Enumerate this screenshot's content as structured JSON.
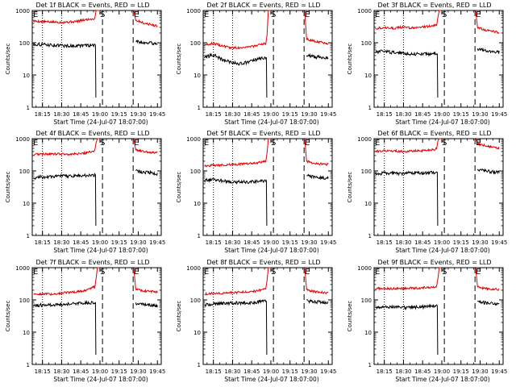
{
  "chart_data": [
    {
      "type": "line",
      "title": "Det 1f BLACK = Events, RED = LLD",
      "ylabel": "Counts/sec",
      "xlabel": "Start Time (24-Jul-07 18:07:00)",
      "yscale": "log",
      "ylim": [
        1,
        1000
      ],
      "yticks": [
        "1",
        "10",
        "100",
        "1000"
      ],
      "xticks": [
        "18:15",
        "18:30",
        "18:45",
        "19:00",
        "19:15",
        "19:30",
        "19:45"
      ],
      "markers": {
        "S": "19:02",
        "E": "19:26"
      },
      "series": [
        {
          "color": "#e00000",
          "pre": [
            470,
            450,
            440,
            430,
            440,
            460,
            520,
            560
          ],
          "post": [
            500,
            450,
            400,
            380,
            350,
            330
          ]
        },
        {
          "color": "#000000",
          "pre": [
            90,
            88,
            85,
            82,
            80,
            80,
            82,
            85
          ],
          "post": [
            110,
            105,
            100,
            100,
            95,
            95
          ]
        }
      ]
    },
    {
      "type": "line",
      "title": "Det 2f BLACK = Events, RED = LLD",
      "ylabel": "Counts/sec",
      "xlabel": "Start Time (24-Jul-07 18:07:00)",
      "yscale": "log",
      "ylim": [
        1,
        1000
      ],
      "yticks": [
        "1",
        "10",
        "100",
        "1000"
      ],
      "xticks": [
        "18:15",
        "18:30",
        "18:45",
        "19:00",
        "19:15",
        "19:30",
        "19:45"
      ],
      "markers": {
        "S": "19:02",
        "E": "19:26"
      },
      "series": [
        {
          "color": "#e00000",
          "pre": [
            85,
            95,
            80,
            70,
            70,
            75,
            80,
            95
          ],
          "post": [
            130,
            120,
            110,
            105,
            100,
            95
          ]
        },
        {
          "color": "#000000",
          "pre": [
            35,
            42,
            30,
            25,
            22,
            25,
            30,
            35
          ],
          "post": [
            40,
            38,
            36,
            36,
            35,
            35
          ]
        }
      ]
    },
    {
      "type": "line",
      "title": "Det 3f BLACK = Events, RED = LLD",
      "ylabel": "Counts/sec",
      "xlabel": "Start Time (24-Jul-07 18:07:00)",
      "yscale": "log",
      "ylim": [
        1,
        1000
      ],
      "yticks": [
        "1",
        "10",
        "100",
        "1000"
      ],
      "xticks": [
        "18:15",
        "18:30",
        "18:45",
        "19:00",
        "19:15",
        "19:30",
        "19:45"
      ],
      "markers": {
        "S": "19:02",
        "E": "19:26"
      },
      "series": [
        {
          "color": "#e00000",
          "pre": [
            280,
            300,
            280,
            300,
            290,
            300,
            320,
            350
          ],
          "post": [
            300,
            270,
            240,
            230,
            220,
            210
          ]
        },
        {
          "color": "#000000",
          "pre": [
            50,
            55,
            50,
            48,
            45,
            45,
            45,
            45
          ],
          "post": [
            65,
            60,
            55,
            55,
            52,
            50
          ]
        }
      ]
    },
    {
      "type": "line",
      "title": "Det 4f BLACK = Events, RED = LLD",
      "ylabel": "Counts/sec",
      "xlabel": "Start Time (24-Jul-07 18:07:00)",
      "yscale": "log",
      "ylim": [
        1,
        1000
      ],
      "yticks": [
        "1",
        "10",
        "100",
        "1000"
      ],
      "xticks": [
        "18:15",
        "18:30",
        "18:45",
        "19:00",
        "19:15",
        "19:30",
        "19:45"
      ],
      "markers": {
        "S": "19:02",
        "E": "19:26"
      },
      "series": [
        {
          "color": "#e00000",
          "pre": [
            320,
            340,
            330,
            340,
            330,
            340,
            360,
            420
          ],
          "post": [
            450,
            420,
            400,
            380,
            370,
            360
          ]
        },
        {
          "color": "#000000",
          "pre": [
            60,
            65,
            65,
            68,
            70,
            70,
            72,
            75
          ],
          "post": [
            100,
            95,
            90,
            88,
            85,
            82
          ]
        }
      ]
    },
    {
      "type": "line",
      "title": "Det 5f BLACK = Events, RED = LLD",
      "ylabel": "Counts/sec",
      "xlabel": "Start Time (24-Jul-07 18:07:00)",
      "yscale": "log",
      "ylim": [
        1,
        1000
      ],
      "yticks": [
        "1",
        "10",
        "100",
        "1000"
      ],
      "xticks": [
        "18:15",
        "18:30",
        "18:45",
        "19:00",
        "19:15",
        "19:30",
        "19:45"
      ],
      "markers": {
        "S": "19:02",
        "E": "19:26"
      },
      "series": [
        {
          "color": "#e00000",
          "pre": [
            140,
            150,
            150,
            160,
            160,
            170,
            180,
            200
          ],
          "post": [
            200,
            180,
            170,
            165,
            160,
            160
          ]
        },
        {
          "color": "#000000",
          "pre": [
            50,
            55,
            50,
            45,
            45,
            45,
            48,
            50
          ],
          "post": [
            70,
            68,
            65,
            62,
            60,
            58
          ]
        }
      ]
    },
    {
      "type": "line",
      "title": "Det 6f BLACK = Events, RED = LLD",
      "ylabel": "Counts/sec",
      "xlabel": "Start Time (24-Jul-07 18:07:00)",
      "yscale": "log",
      "ylim": [
        1,
        1000
      ],
      "yticks": [
        "1",
        "10",
        "100",
        "1000"
      ],
      "xticks": [
        "18:15",
        "18:30",
        "18:45",
        "19:00",
        "19:15",
        "19:30",
        "19:45"
      ],
      "markers": {
        "S": "19:02",
        "E": "19:26"
      },
      "series": [
        {
          "color": "#e00000",
          "pre": [
            400,
            420,
            420,
            400,
            410,
            420,
            440,
            480
          ],
          "post": [
            700,
            650,
            600,
            560,
            520,
            500
          ]
        },
        {
          "color": "#000000",
          "pre": [
            80,
            85,
            85,
            82,
            85,
            85,
            88,
            90
          ],
          "post": [
            110,
            105,
            100,
            95,
            92,
            90
          ]
        }
      ]
    },
    {
      "type": "line",
      "title": "Det 7f BLACK = Events, RED = LLD",
      "ylabel": "Counts/sec",
      "xlabel": "Start Time (24-Jul-07 18:07:00)",
      "yscale": "log",
      "ylim": [
        1,
        1000
      ],
      "yticks": [
        "1",
        "10",
        "100",
        "1000"
      ],
      "xticks": [
        "18:15",
        "18:30",
        "18:45",
        "19:00",
        "19:15",
        "19:30",
        "19:45"
      ],
      "markers": {
        "S": "19:02",
        "E": "19:26"
      },
      "series": [
        {
          "color": "#e00000",
          "pre": [
            150,
            155,
            150,
            160,
            170,
            180,
            200,
            260
          ],
          "post": [
            220,
            200,
            190,
            185,
            180,
            175
          ]
        },
        {
          "color": "#000000",
          "pre": [
            65,
            70,
            70,
            72,
            75,
            78,
            80,
            85
          ],
          "post": [
            80,
            75,
            72,
            70,
            68,
            65
          ]
        }
      ]
    },
    {
      "type": "line",
      "title": "Det 8f BLACK = Events, RED = LLD",
      "ylabel": "Counts/sec",
      "xlabel": "Start Time (24-Jul-07 18:07:00)",
      "yscale": "log",
      "ylim": [
        1,
        1000
      ],
      "yticks": [
        "1",
        "10",
        "100",
        "1000"
      ],
      "xticks": [
        "18:15",
        "18:30",
        "18:45",
        "19:00",
        "19:15",
        "19:30",
        "19:45"
      ],
      "markers": {
        "S": "19:02",
        "E": "19:26"
      },
      "series": [
        {
          "color": "#e00000",
          "pre": [
            150,
            160,
            160,
            170,
            170,
            180,
            190,
            220
          ],
          "post": [
            210,
            190,
            180,
            175,
            170,
            165
          ]
        },
        {
          "color": "#000000",
          "pre": [
            70,
            75,
            78,
            80,
            80,
            82,
            85,
            90
          ],
          "post": [
            95,
            90,
            88,
            85,
            82,
            80
          ]
        }
      ]
    },
    {
      "type": "line",
      "title": "Det 9f BLACK = Events, RED = LLD",
      "ylabel": "Counts/sec",
      "xlabel": "Start Time (24-Jul-07 18:07:00)",
      "yscale": "log",
      "ylim": [
        1,
        1000
      ],
      "yticks": [
        "1",
        "10",
        "100",
        "1000"
      ],
      "xticks": [
        "18:15",
        "18:30",
        "18:45",
        "19:00",
        "19:15",
        "19:30",
        "19:45"
      ],
      "markers": {
        "S": "19:02",
        "E": "19:26"
      },
      "series": [
        {
          "color": "#e00000",
          "pre": [
            220,
            230,
            220,
            225,
            230,
            235,
            240,
            260
          ],
          "post": [
            250,
            235,
            225,
            220,
            215,
            210
          ]
        },
        {
          "color": "#000000",
          "pre": [
            60,
            62,
            60,
            58,
            58,
            60,
            62,
            65
          ],
          "post": [
            90,
            85,
            80,
            78,
            75,
            72
          ]
        }
      ]
    }
  ]
}
